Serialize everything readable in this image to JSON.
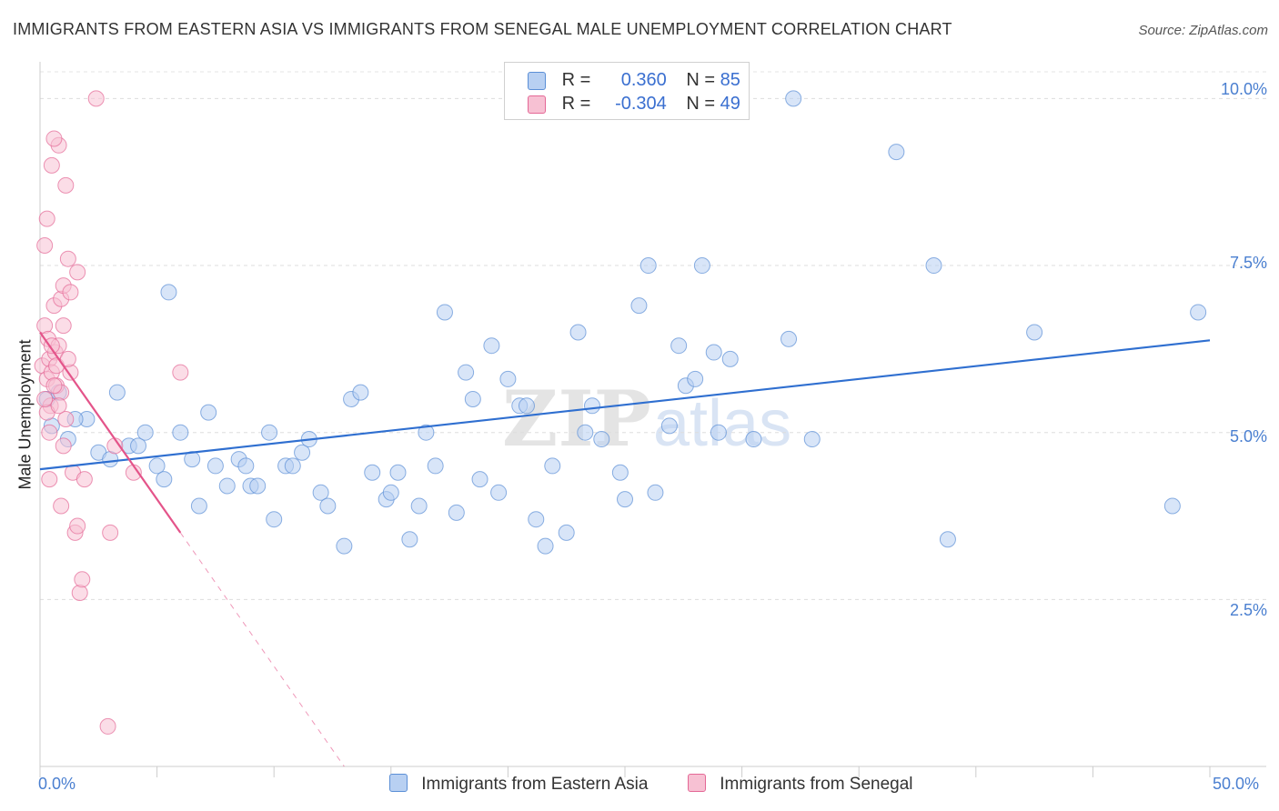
{
  "title": "IMMIGRANTS FROM EASTERN ASIA VS IMMIGRANTS FROM SENEGAL MALE UNEMPLOYMENT CORRELATION CHART",
  "source": "Source: ZipAtlas.com",
  "watermark": {
    "zip": "ZIP",
    "atlas": "atlas"
  },
  "legend": {
    "blue": {
      "r_label": "R =",
      "r_value": "0.360",
      "n_label": "N =",
      "n_value": "85"
    },
    "pink": {
      "r_label": "R =",
      "r_value": "-0.304",
      "n_label": "N =",
      "n_value": "49"
    }
  },
  "colors": {
    "blue": "#5b8fd6",
    "blue_fill": "#b8d0f2",
    "pink": "#e46896",
    "pink_fill": "#f7c1d3",
    "axis_text": "#4a7fd0"
  },
  "chart_data": {
    "type": "scatter",
    "title": "IMMIGRANTS FROM EASTERN ASIA VS IMMIGRANTS FROM SENEGAL MALE UNEMPLOYMENT CORRELATION CHART",
    "xlabel": "",
    "ylabel": "Male Unemployment",
    "xlim": [
      0,
      50
    ],
    "ylim": [
      0,
      10.4
    ],
    "x_tick_labels": {
      "min": "0.0%",
      "max": "50.0%"
    },
    "y_ticks": [
      {
        "value": 2.5,
        "label": "2.5%"
      },
      {
        "value": 5.0,
        "label": "5.0%"
      },
      {
        "value": 7.5,
        "label": "7.5%"
      },
      {
        "value": 10.0,
        "label": "10.0%"
      }
    ],
    "series": [
      {
        "name": "Immigrants from Eastern Asia",
        "color": "blue",
        "trend": {
          "x": [
            0,
            50
          ],
          "y": [
            4.45,
            6.38
          ],
          "dashed_x": null
        },
        "points": [
          [
            0.5,
            5.1
          ],
          [
            0.3,
            5.5
          ],
          [
            2.0,
            5.2
          ],
          [
            2.5,
            4.7
          ],
          [
            3.0,
            4.6
          ],
          [
            3.3,
            5.6
          ],
          [
            3.8,
            4.8
          ],
          [
            4.2,
            4.8
          ],
          [
            4.5,
            5.0
          ],
          [
            5.0,
            4.5
          ],
          [
            5.3,
            4.3
          ],
          [
            5.5,
            7.1
          ],
          [
            6.0,
            5.0
          ],
          [
            6.5,
            4.6
          ],
          [
            6.8,
            3.9
          ],
          [
            7.2,
            5.3
          ],
          [
            7.5,
            4.5
          ],
          [
            8.0,
            4.2
          ],
          [
            8.5,
            4.6
          ],
          [
            8.8,
            4.5
          ],
          [
            9.0,
            4.2
          ],
          [
            9.3,
            4.2
          ],
          [
            9.8,
            5.0
          ],
          [
            10.0,
            3.7
          ],
          [
            10.5,
            4.5
          ],
          [
            10.8,
            4.5
          ],
          [
            11.2,
            4.7
          ],
          [
            11.5,
            4.9
          ],
          [
            12.0,
            4.1
          ],
          [
            12.3,
            3.9
          ],
          [
            13.0,
            3.3
          ],
          [
            13.3,
            5.5
          ],
          [
            13.7,
            5.6
          ],
          [
            14.2,
            4.4
          ],
          [
            14.8,
            4.0
          ],
          [
            15.0,
            4.1
          ],
          [
            15.3,
            4.4
          ],
          [
            15.8,
            3.4
          ],
          [
            16.2,
            3.9
          ],
          [
            16.5,
            5.0
          ],
          [
            16.9,
            4.5
          ],
          [
            17.3,
            6.8
          ],
          [
            17.8,
            3.8
          ],
          [
            18.2,
            5.9
          ],
          [
            18.5,
            5.5
          ],
          [
            18.8,
            4.3
          ],
          [
            19.3,
            6.3
          ],
          [
            19.6,
            4.1
          ],
          [
            20.0,
            5.8
          ],
          [
            20.5,
            5.4
          ],
          [
            20.8,
            5.4
          ],
          [
            21.2,
            3.7
          ],
          [
            21.6,
            3.3
          ],
          [
            21.9,
            4.5
          ],
          [
            22.5,
            3.5
          ],
          [
            23.0,
            6.5
          ],
          [
            23.3,
            5.0
          ],
          [
            23.6,
            5.4
          ],
          [
            24.0,
            4.9
          ],
          [
            24.8,
            4.4
          ],
          [
            25.0,
            4.0
          ],
          [
            25.6,
            6.9
          ],
          [
            26.0,
            7.5
          ],
          [
            26.3,
            4.1
          ],
          [
            26.9,
            5.1
          ],
          [
            27.3,
            6.3
          ],
          [
            27.6,
            5.7
          ],
          [
            28.0,
            5.8
          ],
          [
            28.3,
            7.5
          ],
          [
            28.8,
            6.2
          ],
          [
            29.0,
            5.0
          ],
          [
            29.5,
            6.1
          ],
          [
            30.5,
            4.9
          ],
          [
            32.0,
            6.4
          ],
          [
            32.2,
            10.0
          ],
          [
            33.0,
            4.9
          ],
          [
            36.6,
            9.2
          ],
          [
            38.2,
            7.5
          ],
          [
            38.8,
            3.4
          ],
          [
            42.5,
            6.5
          ],
          [
            48.4,
            3.9
          ],
          [
            49.5,
            6.8
          ],
          [
            1.2,
            4.9
          ],
          [
            1.5,
            5.2
          ],
          [
            0.8,
            5.6
          ]
        ]
      },
      {
        "name": "Immigrants from Senegal",
        "color": "pink",
        "trend": {
          "x": [
            0,
            6.0
          ],
          "y": [
            6.5,
            3.5
          ],
          "dashed_x": [
            6.0,
            13.0
          ]
        },
        "points": [
          [
            0.1,
            6.0
          ],
          [
            0.2,
            6.6
          ],
          [
            0.3,
            5.8
          ],
          [
            0.35,
            6.4
          ],
          [
            0.4,
            6.1
          ],
          [
            0.45,
            5.4
          ],
          [
            0.5,
            5.9
          ],
          [
            0.6,
            6.9
          ],
          [
            0.65,
            6.2
          ],
          [
            0.7,
            5.7
          ],
          [
            0.8,
            6.3
          ],
          [
            0.9,
            7.0
          ],
          [
            0.9,
            5.6
          ],
          [
            1.0,
            7.2
          ],
          [
            1.1,
            5.2
          ],
          [
            1.2,
            7.6
          ],
          [
            1.3,
            5.9
          ],
          [
            1.4,
            4.4
          ],
          [
            1.5,
            3.5
          ],
          [
            1.6,
            3.6
          ],
          [
            1.7,
            2.6
          ],
          [
            1.8,
            2.8
          ],
          [
            1.9,
            4.3
          ],
          [
            0.2,
            7.8
          ],
          [
            0.3,
            8.2
          ],
          [
            0.5,
            9.0
          ],
          [
            0.8,
            9.3
          ],
          [
            1.1,
            8.7
          ],
          [
            0.6,
            9.4
          ],
          [
            2.4,
            10.0
          ],
          [
            3.0,
            3.5
          ],
          [
            3.2,
            4.8
          ],
          [
            4.0,
            4.4
          ],
          [
            6.0,
            5.9
          ],
          [
            2.9,
            0.6
          ],
          [
            0.4,
            4.3
          ],
          [
            0.9,
            3.9
          ],
          [
            1.3,
            7.1
          ],
          [
            0.7,
            6.0
          ],
          [
            1.6,
            7.4
          ],
          [
            0.3,
            5.3
          ],
          [
            1.0,
            6.6
          ],
          [
            0.5,
            6.3
          ],
          [
            0.2,
            5.5
          ],
          [
            0.8,
            5.4
          ],
          [
            1.2,
            6.1
          ],
          [
            0.4,
            5.0
          ],
          [
            1.0,
            4.8
          ],
          [
            0.6,
            5.7
          ]
        ]
      }
    ]
  },
  "bottom_legend": {
    "blue_label": "Immigrants from Eastern Asia",
    "pink_label": "Immigrants from Senegal"
  }
}
